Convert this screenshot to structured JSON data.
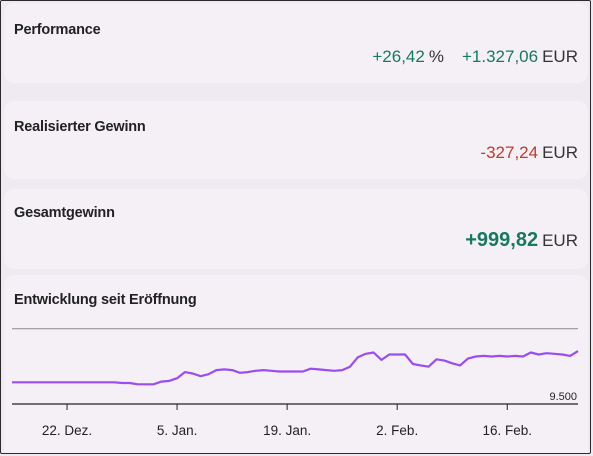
{
  "performance": {
    "title": "Performance",
    "percent": "+26,42",
    "percent_unit": "%",
    "amount": "+1.327,06",
    "amount_unit": "EUR",
    "color_positive": "#17795f"
  },
  "realized": {
    "title": "Realisierter Gewinn",
    "amount": "-327,24",
    "unit": "EUR",
    "color_negative": "#c23a2a"
  },
  "total": {
    "title": "Gesamtgewinn",
    "amount": "+999,82",
    "unit": "EUR"
  },
  "chart_data": {
    "type": "line",
    "title": "Entwicklung seit Eröffnung",
    "x_tick_labels": [
      "22. Dez.",
      "5. Jan.",
      "19. Jan.",
      "2. Feb.",
      "16. Feb."
    ],
    "y_tick_labels": [
      "9.500"
    ],
    "reference_line_value": 10430,
    "ylim": [
      9320,
      10500
    ],
    "line_color": "#9b4df0",
    "x": [
      "Dez 15",
      "Dez 16",
      "Dez 17",
      "Dez 18",
      "Dez 19",
      "Dez 20",
      "Dez 21",
      "Dez 22",
      "Dez 23",
      "Dez 24",
      "Dez 25",
      "Dez 26",
      "Dez 27",
      "Dez 28",
      "Dez 29",
      "Dez 30",
      "Dez 31",
      "Jan 1",
      "Jan 2",
      "Jan 3",
      "Jan 4",
      "Jan 5",
      "Jan 6",
      "Jan 7",
      "Jan 8",
      "Jan 9",
      "Jan 10",
      "Jan 11",
      "Jan 12",
      "Jan 13",
      "Jan 14",
      "Jan 15",
      "Jan 16",
      "Jan 17",
      "Jan 18",
      "Jan 19",
      "Jan 20",
      "Jan 21",
      "Jan 22",
      "Jan 23",
      "Jan 24",
      "Jan 25",
      "Jan 26",
      "Jan 27",
      "Jan 28",
      "Jan 29",
      "Jan 30",
      "Jan 31",
      "Feb 1",
      "Feb 2",
      "Feb 3",
      "Feb 4",
      "Feb 5",
      "Feb 6",
      "Feb 7",
      "Feb 8",
      "Feb 9",
      "Feb 10",
      "Feb 11",
      "Feb 12",
      "Feb 13",
      "Feb 14",
      "Feb 15",
      "Feb 16",
      "Feb 17",
      "Feb 18",
      "Feb 19",
      "Feb 20",
      "Feb 21",
      "Feb 22",
      "Feb 23",
      "Feb 24",
      "Feb 25"
    ],
    "values": [
      9640,
      9640,
      9640,
      9640,
      9640,
      9640,
      9640,
      9640,
      9640,
      9640,
      9640,
      9640,
      9640,
      9640,
      9630,
      9630,
      9610,
      9610,
      9610,
      9650,
      9660,
      9700,
      9790,
      9770,
      9730,
      9760,
      9820,
      9830,
      9820,
      9780,
      9790,
      9810,
      9820,
      9810,
      9800,
      9800,
      9800,
      9800,
      9840,
      9830,
      9820,
      9810,
      9820,
      9870,
      10010,
      10060,
      10080,
      9970,
      10050,
      10050,
      10050,
      9910,
      9890,
      9870,
      9980,
      9960,
      9920,
      9890,
      9990,
      10020,
      10030,
      10020,
      10030,
      10020,
      10030,
      10020,
      10080,
      10050,
      10070,
      10060,
      10050,
      10030,
      10100
    ]
  }
}
